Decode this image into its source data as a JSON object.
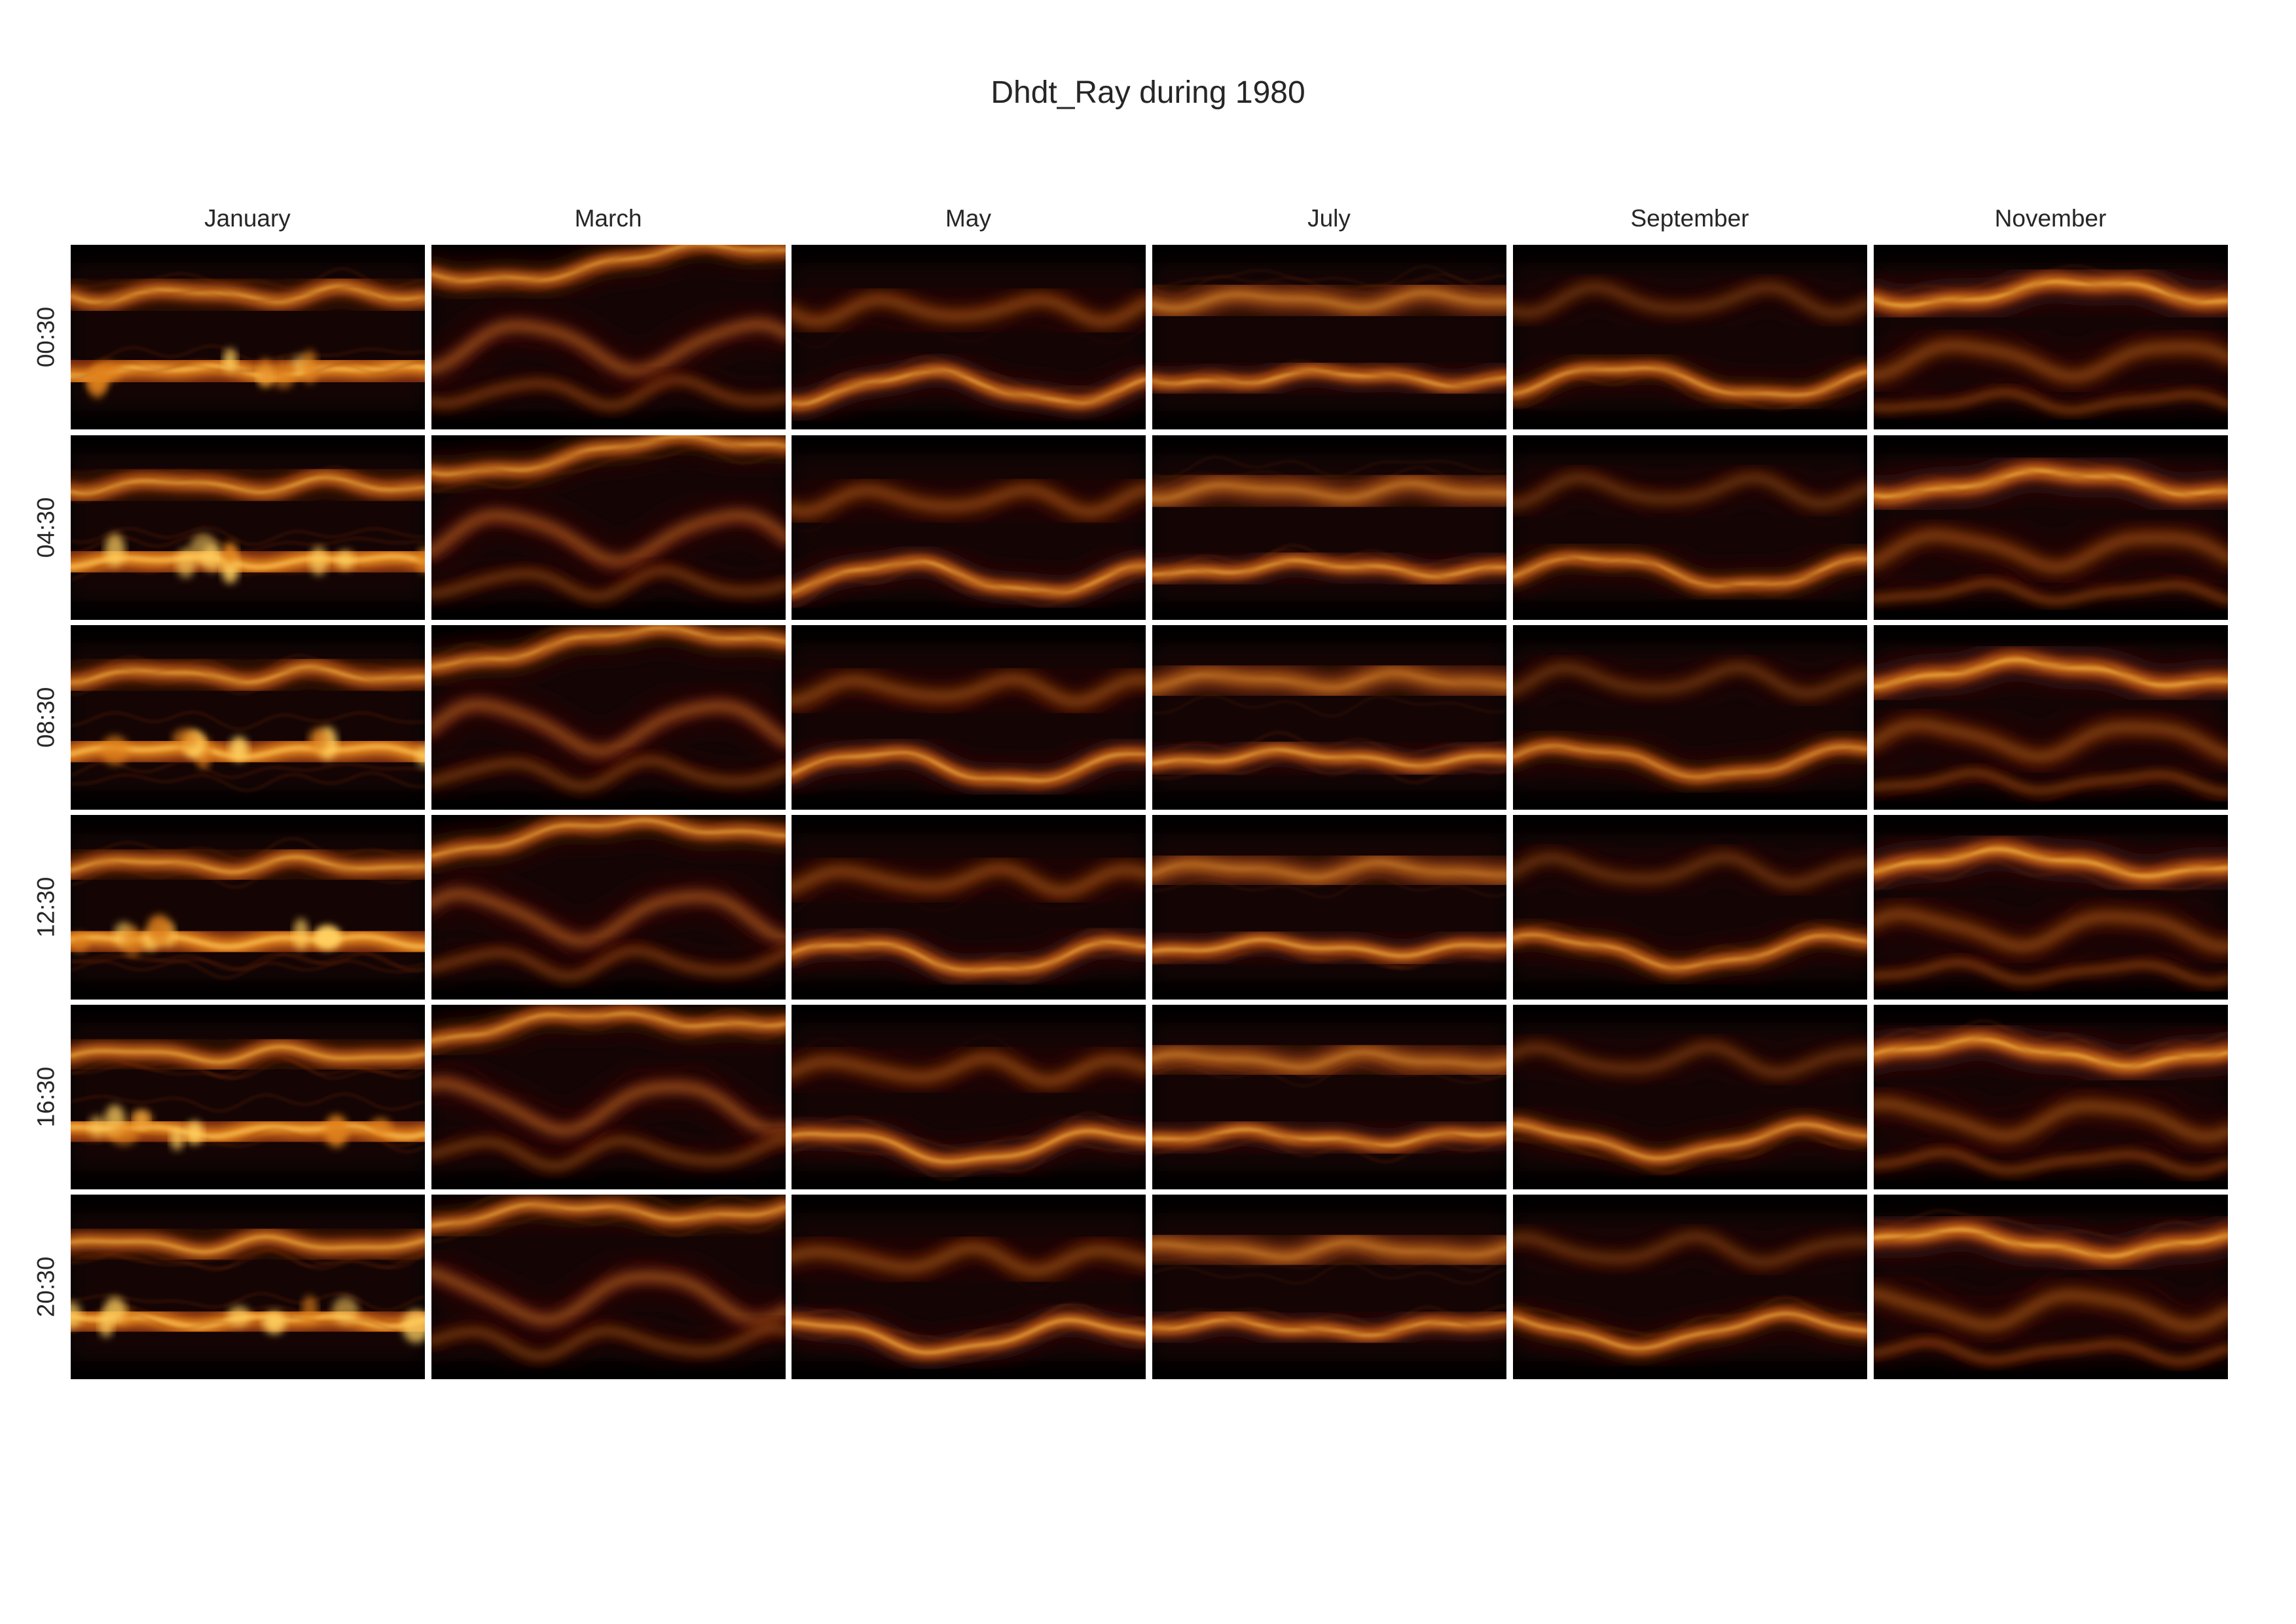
{
  "title": "Dhdt_Ray during 1980",
  "chart_data": {
    "type": "heatmap",
    "title": "Dhdt_Ray during 1980",
    "columns": [
      "January",
      "March",
      "May",
      "July",
      "September",
      "November"
    ],
    "rows": [
      "00:30",
      "04:30",
      "08:30",
      "12:30",
      "16:30",
      "20:30"
    ],
    "colormap": "afmhot",
    "colors": {
      "low": "#000000",
      "mid_dark": "#3a0d08",
      "mid": "#8a3412",
      "high": "#e0821f",
      "peak": "#ffd060"
    },
    "panel_patterns": {
      "January": [
        {
          "y": 0.27,
          "amp": 0.03,
          "freq": 2.2,
          "phase": 0.3,
          "intensity": 0.85,
          "thickness": 0.09
        },
        {
          "y": 0.68,
          "amp": 0.02,
          "freq": 1.8,
          "phase": 1.1,
          "intensity": 0.95,
          "thickness": 0.16,
          "blobs": true
        }
      ],
      "March": [
        {
          "y": 0.1,
          "amp": 0.06,
          "freq": 1.0,
          "phase": 0.0,
          "intensity": 0.85,
          "thickness": 0.08,
          "slope": -0.06
        },
        {
          "y": 0.55,
          "amp": 0.12,
          "freq": 1.6,
          "phase": 2.0,
          "intensity": 0.35,
          "thickness": 0.1
        },
        {
          "y": 0.8,
          "amp": 0.06,
          "freq": 2.3,
          "phase": 0.7,
          "intensity": 0.25,
          "thickness": 0.08
        }
      ],
      "May": [
        {
          "y": 0.35,
          "amp": 0.05,
          "freq": 2.5,
          "phase": 0.4,
          "intensity": 0.3,
          "thickness": 0.12
        },
        {
          "y": 0.77,
          "amp": 0.08,
          "freq": 1.3,
          "phase": 1.6,
          "intensity": 0.95,
          "thickness": 0.07
        }
      ],
      "July": [
        {
          "y": 0.3,
          "amp": 0.03,
          "freq": 2.0,
          "phase": 0.9,
          "intensity": 0.55,
          "thickness": 0.14
        },
        {
          "y": 0.72,
          "amp": 0.03,
          "freq": 1.4,
          "phase": 0.2,
          "intensity": 0.95,
          "thickness": 0.07
        }
      ],
      "September": [
        {
          "y": 0.3,
          "amp": 0.06,
          "freq": 2.2,
          "phase": 1.3,
          "intensity": 0.22,
          "thickness": 0.1
        },
        {
          "y": 0.74,
          "amp": 0.08,
          "freq": 1.2,
          "phase": 2.4,
          "intensity": 0.9,
          "thickness": 0.07
        }
      ],
      "November": [
        {
          "y": 0.26,
          "amp": 0.06,
          "freq": 1.1,
          "phase": 0.6,
          "intensity": 0.95,
          "thickness": 0.09
        },
        {
          "y": 0.62,
          "amp": 0.08,
          "freq": 1.7,
          "phase": 1.9,
          "intensity": 0.3,
          "thickness": 0.12
        },
        {
          "y": 0.85,
          "amp": 0.04,
          "freq": 2.0,
          "phase": 0.4,
          "intensity": 0.3,
          "thickness": 0.06
        }
      ]
    }
  }
}
